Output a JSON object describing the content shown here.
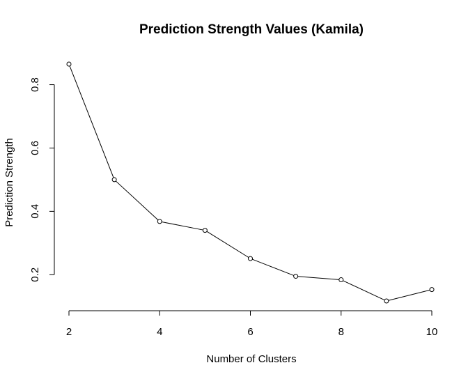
{
  "chart_data": {
    "type": "line",
    "title": "Prediction Strength Values (Kamila)",
    "xlabel": "Number of Clusters",
    "ylabel": "Prediction Strength",
    "x": [
      2,
      3,
      4,
      5,
      6,
      7,
      8,
      9,
      10
    ],
    "series": [
      {
        "values": [
          0.865,
          0.5,
          0.368,
          0.34,
          0.251,
          0.195,
          0.184,
          0.117,
          0.153
        ]
      }
    ],
    "xticks": [
      2,
      4,
      6,
      8,
      10
    ],
    "xtick_labels": [
      "2",
      "4",
      "6",
      "8",
      "10"
    ],
    "yticks": [
      0.2,
      0.4,
      0.6,
      0.8
    ],
    "ytick_labels": [
      "0.2",
      "0.4",
      "0.6",
      "0.8"
    ],
    "xlim": [
      2,
      10
    ],
    "ylim": [
      0.117,
      0.865
    ],
    "grid": false,
    "legend": "none",
    "marker": "open-circle",
    "line_color": "#000000"
  }
}
